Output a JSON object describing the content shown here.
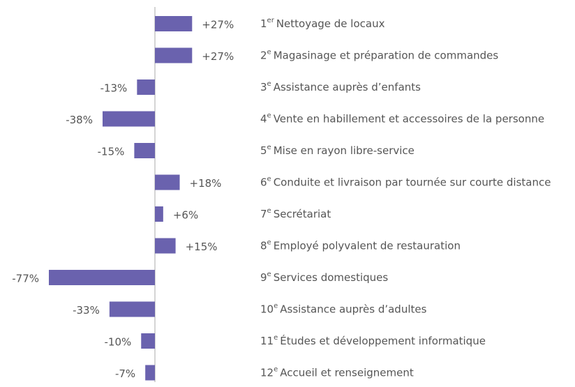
{
  "chart_data": {
    "type": "bar",
    "orientation": "horizontal",
    "color": "#6a62ae",
    "rank_labels": [
      {
        "number": "1",
        "suffix": "er"
      },
      {
        "number": "2",
        "suffix": "e"
      },
      {
        "number": "3",
        "suffix": "e"
      },
      {
        "number": "4",
        "suffix": "e"
      },
      {
        "number": "5",
        "suffix": "e"
      },
      {
        "number": "6",
        "suffix": "e"
      },
      {
        "number": "7",
        "suffix": "e"
      },
      {
        "number": "8",
        "suffix": "e"
      },
      {
        "number": "9",
        "suffix": "e"
      },
      {
        "number": "10",
        "suffix": "e"
      },
      {
        "number": "11",
        "suffix": "e"
      },
      {
        "number": "12",
        "suffix": "e"
      }
    ],
    "categories": [
      "Nettoyage de locaux",
      "Magasinage et préparation de commandes",
      "Assistance auprès d’enfants",
      "Vente en habillement et accessoires de la personne",
      "Mise en rayon libre-service",
      "Conduite et livraison par tournée sur courte distance",
      "Secrétariat",
      "Employé polyvalent de restauration",
      "Services domestiques",
      "Assistance auprès d’adultes",
      "Études et développement informatique",
      "Accueil et renseignement"
    ],
    "values": [
      27,
      27,
      -13,
      -38,
      -15,
      18,
      6,
      15,
      -77,
      -33,
      -10,
      -7
    ],
    "value_labels": [
      "+27%",
      "+27%",
      "-13%",
      "-38%",
      "-15%",
      "+18%",
      "+6%",
      "+15%",
      "-77%",
      "-33%",
      "-10%",
      "-7%"
    ]
  }
}
